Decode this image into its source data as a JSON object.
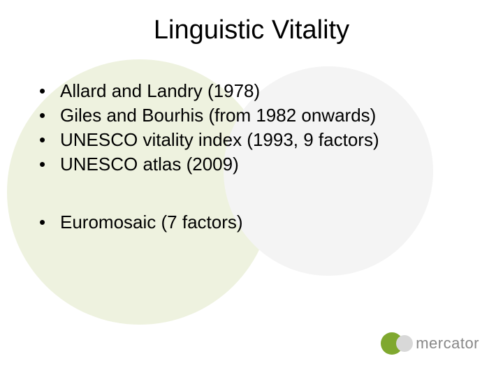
{
  "title": "Linguistic Vitality",
  "groups": [
    {
      "items": [
        "Allard and Landry (1978)",
        "Giles and Bourhis (from 1982 onwards)",
        "UNESCO vitality index (1993, 9 factors)",
        "UNESCO atlas (2009)"
      ]
    },
    {
      "items": [
        "Euromosaic (7 factors)"
      ]
    }
  ],
  "logo": {
    "text": "mercator",
    "green": "#7fa82f",
    "grey": "#d8d8d8",
    "text_color": "#888888"
  },
  "background": {
    "circle_green": "#eef2df",
    "circle_grey": "#f4f4f4",
    "page": "#ffffff"
  },
  "typography": {
    "title_fontsize": 38,
    "bullet_fontsize": 26,
    "font_family": "Arial"
  }
}
